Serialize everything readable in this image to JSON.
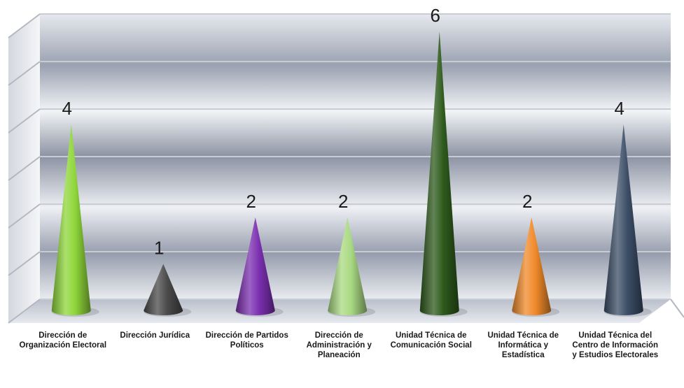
{
  "chart_data": {
    "type": "bar",
    "bar_shape": "cone",
    "categories": [
      "Dirección de Organización Electoral",
      "Dirección Jurídica",
      "Dirección de Partidos Políticos",
      "Dirección de Administración y Planeación",
      "Unidad Técnica de Comunicación Social",
      "Unidad Técnica de Informática y Estadística",
      "Unidad Técnica del Centro de Información y Estudios Electorales"
    ],
    "values": [
      4,
      1,
      2,
      2,
      6,
      2,
      4
    ],
    "data_labels": [
      "4",
      "1",
      "2",
      "2",
      "6",
      "2",
      "4"
    ],
    "colors": [
      "#8fd63a",
      "#4a4a4a",
      "#7b2fb0",
      "#a9d982",
      "#2e5a1c",
      "#f08a2a",
      "#3b4d66"
    ],
    "ylim": [
      0,
      6
    ],
    "grid": true,
    "legend": "none",
    "background_gradient": [
      "#8e95a6",
      "#e8ebf0"
    ]
  }
}
